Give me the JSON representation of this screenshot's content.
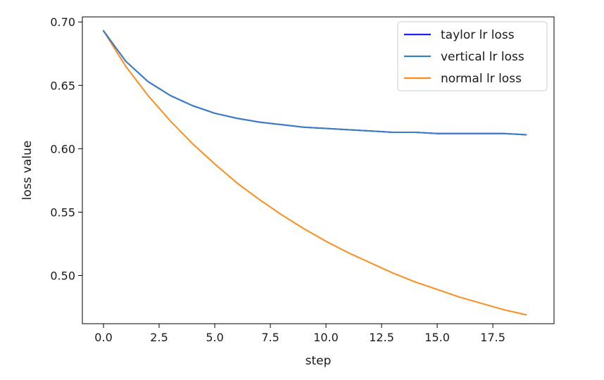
{
  "chart_data": {
    "type": "line",
    "title": "",
    "xlabel": "step",
    "ylabel": "loss value",
    "xlim": [
      -0.95,
      20.25
    ],
    "ylim": [
      0.462,
      0.704
    ],
    "xticks": [
      0.0,
      2.5,
      5.0,
      7.5,
      10.0,
      12.5,
      15.0,
      17.5
    ],
    "xtick_labels": [
      "0.0",
      "2.5",
      "5.0",
      "7.5",
      "10.0",
      "12.5",
      "15.0",
      "17.5"
    ],
    "yticks": [
      0.5,
      0.55,
      0.6,
      0.65,
      0.7
    ],
    "ytick_labels": [
      "0.50",
      "0.55",
      "0.60",
      "0.65",
      "0.70"
    ],
    "grid": false,
    "legend_position": "top-right",
    "x": [
      0,
      1,
      2,
      3,
      4,
      5,
      6,
      7,
      8,
      9,
      10,
      11,
      12,
      13,
      14,
      15,
      16,
      17,
      18,
      19
    ],
    "series": [
      {
        "name": "taylor lr loss",
        "color": "#2020ff",
        "values": [
          0.693,
          0.669,
          0.653,
          0.642,
          0.634,
          0.628,
          0.624,
          0.621,
          0.619,
          0.617,
          0.616,
          0.615,
          0.614,
          0.613,
          0.613,
          0.612,
          0.612,
          0.612,
          0.612,
          0.611
        ]
      },
      {
        "name": "vertical lr loss",
        "color": "#3a7fc4",
        "values": [
          0.693,
          0.669,
          0.653,
          0.642,
          0.634,
          0.628,
          0.624,
          0.621,
          0.619,
          0.617,
          0.616,
          0.615,
          0.614,
          0.613,
          0.613,
          0.612,
          0.612,
          0.612,
          0.612,
          0.611
        ]
      },
      {
        "name": "normal lr loss",
        "color": "#ff8c1a",
        "values": [
          0.693,
          0.665,
          0.642,
          0.622,
          0.604,
          0.588,
          0.573,
          0.56,
          0.548,
          0.537,
          0.527,
          0.518,
          0.51,
          0.502,
          0.495,
          0.489,
          0.483,
          0.478,
          0.473,
          0.469
        ]
      }
    ]
  }
}
